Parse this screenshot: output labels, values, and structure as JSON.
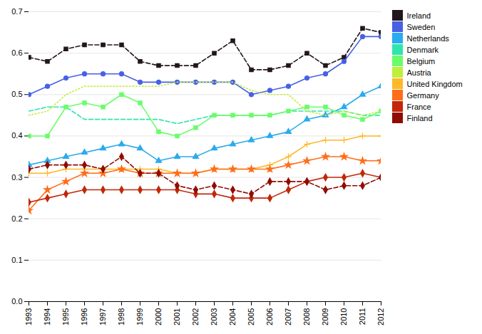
{
  "chart_data": {
    "type": "line",
    "x": [
      1993,
      1994,
      1995,
      1996,
      1997,
      1998,
      1999,
      2000,
      2001,
      2002,
      2003,
      2004,
      2005,
      2006,
      2007,
      2008,
      2009,
      2010,
      2011,
      2012
    ],
    "series": [
      {
        "name": "Ireland",
        "marker": "square",
        "line_style": "dashed",
        "values": [
          0.59,
          0.58,
          0.61,
          0.62,
          0.62,
          0.62,
          0.58,
          0.57,
          0.57,
          0.57,
          0.6,
          0.63,
          0.56,
          0.56,
          0.57,
          0.6,
          0.57,
          0.59,
          0.66,
          0.65
        ]
      },
      {
        "name": "Sweden",
        "marker": "circle",
        "line_style": "solid",
        "values": [
          0.5,
          0.52,
          0.54,
          0.55,
          0.55,
          0.55,
          0.53,
          0.53,
          0.53,
          0.53,
          0.53,
          0.53,
          0.5,
          0.51,
          0.52,
          0.54,
          0.55,
          0.58,
          0.64,
          0.64
        ]
      },
      {
        "name": "Netherlands",
        "marker": "triangle",
        "line_style": "solid",
        "values": [
          0.33,
          0.34,
          0.35,
          0.36,
          0.37,
          0.38,
          0.37,
          0.34,
          0.35,
          0.35,
          0.37,
          0.38,
          0.39,
          0.4,
          0.41,
          0.44,
          0.45,
          0.47,
          0.5,
          0.52
        ]
      },
      {
        "name": "Denmark",
        "marker": "none",
        "line_style": "dashed",
        "values": [
          0.46,
          0.47,
          0.47,
          0.44,
          0.44,
          0.44,
          0.44,
          0.44,
          0.43,
          0.44,
          0.45,
          0.45,
          0.45,
          0.45,
          0.46,
          0.46,
          0.46,
          0.46,
          0.45,
          0.45
        ]
      },
      {
        "name": "Belgium",
        "marker": "square",
        "line_style": "solid",
        "values": [
          0.4,
          0.4,
          0.47,
          0.48,
          0.47,
          0.5,
          0.48,
          0.41,
          0.4,
          0.42,
          0.45,
          0.45,
          0.45,
          0.45,
          0.46,
          0.47,
          0.47,
          0.45,
          0.44,
          0.46
        ]
      },
      {
        "name": "Austria",
        "marker": "none",
        "line_style": "dotted",
        "values": [
          0.45,
          0.46,
          0.5,
          0.52,
          0.52,
          0.52,
          0.52,
          0.52,
          0.53,
          0.53,
          0.53,
          0.53,
          0.51,
          0.5,
          0.5,
          0.46,
          0.45,
          0.46,
          0.45,
          0.46
        ]
      },
      {
        "name": "United Kingdom",
        "marker": "plus",
        "line_style": "solid",
        "values": [
          0.31,
          0.31,
          0.32,
          0.32,
          0.32,
          0.32,
          0.32,
          0.32,
          0.31,
          0.31,
          0.32,
          0.32,
          0.32,
          0.33,
          0.35,
          0.38,
          0.39,
          0.39,
          0.4,
          0.4
        ]
      },
      {
        "name": "Germany",
        "marker": "star",
        "line_style": "solid",
        "values": [
          0.22,
          0.27,
          0.29,
          0.31,
          0.31,
          0.32,
          0.31,
          0.31,
          0.31,
          0.31,
          0.32,
          0.32,
          0.32,
          0.32,
          0.33,
          0.34,
          0.35,
          0.35,
          0.34,
          0.34
        ]
      },
      {
        "name": "France",
        "marker": "diamond",
        "line_style": "solid",
        "values": [
          0.24,
          0.25,
          0.26,
          0.27,
          0.27,
          0.27,
          0.27,
          0.27,
          0.27,
          0.26,
          0.26,
          0.25,
          0.25,
          0.25,
          0.27,
          0.29,
          0.3,
          0.3,
          0.31,
          0.3
        ]
      },
      {
        "name": "Finland",
        "marker": "diamond",
        "line_style": "dashed",
        "values": [
          0.32,
          0.33,
          0.33,
          0.33,
          0.32,
          0.35,
          0.31,
          0.31,
          0.28,
          0.27,
          0.28,
          0.27,
          0.26,
          0.29,
          0.29,
          0.29,
          0.27,
          0.28,
          0.28,
          0.3
        ]
      }
    ],
    "xlim": [
      1993,
      2012
    ],
    "xticks": [
      1993,
      1994,
      1995,
      1996,
      1997,
      1998,
      1999,
      2000,
      2001,
      2002,
      2003,
      2004,
      2005,
      2006,
      2007,
      2008,
      2009,
      2010,
      2011,
      2012
    ],
    "ylim": [
      0.0,
      0.7
    ],
    "yticks": [
      {
        "value": 0.0,
        "label": "0.0"
      },
      0.1,
      0.2,
      0.3,
      0.4,
      0.5,
      0.6,
      0.7
    ],
    "grid": true,
    "legend": "right"
  }
}
